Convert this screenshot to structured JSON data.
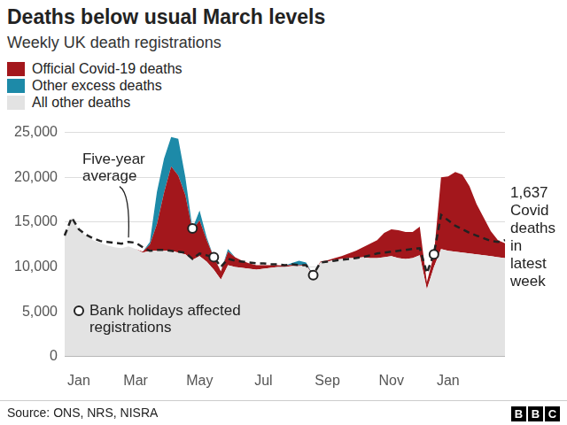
{
  "chart_data": {
    "type": "area",
    "title": "Deaths below usual March levels",
    "subtitle": "Weekly UK death registrations",
    "categories": [
      null,
      null,
      "Jan",
      null,
      null,
      null,
      null,
      null,
      null,
      null,
      "Mar",
      null,
      null,
      null,
      null,
      null,
      null,
      null,
      null,
      "May",
      null,
      null,
      null,
      null,
      null,
      null,
      null,
      null,
      "Jul",
      null,
      null,
      null,
      null,
      null,
      null,
      null,
      null,
      "Sep",
      null,
      null,
      null,
      null,
      null,
      null,
      null,
      null,
      "Nov",
      null,
      null,
      null,
      null,
      null,
      null,
      null,
      "Jan",
      null,
      null,
      null,
      null,
      null,
      null,
      null,
      null
    ],
    "series": [
      {
        "name": "Official Covid-19 deaths",
        "type": "area",
        "color": "#a3171c",
        "values": [
          0,
          0,
          0,
          0,
          0,
          0,
          0,
          0,
          0,
          0,
          0,
          100,
          700,
          3000,
          6500,
          9400,
          8600,
          6600,
          3300,
          4000,
          2400,
          1400,
          900,
          1500,
          1100,
          800,
          600,
          500,
          400,
          300,
          200,
          150,
          150,
          100,
          100,
          100,
          100,
          150,
          200,
          300,
          500,
          800,
          1100,
          1600,
          2000,
          2700,
          3000,
          3100,
          3000,
          2900,
          3200,
          800,
          1400,
          8000,
          8300,
          8900,
          8700,
          7500,
          5600,
          4200,
          2800,
          1900,
          1637
        ]
      },
      {
        "name": "Other excess deaths",
        "type": "area",
        "color": "#1d8aa8",
        "values": [
          0,
          0,
          0,
          0,
          0,
          0,
          0,
          0,
          0,
          0,
          0,
          0,
          300,
          3600,
          3800,
          3300,
          4100,
          2000,
          200,
          1100,
          300,
          0,
          0,
          300,
          0,
          0,
          0,
          0,
          0,
          0,
          0,
          0,
          200,
          500,
          200,
          0,
          0,
          0,
          0,
          0,
          0,
          0,
          0,
          0,
          0,
          0,
          0,
          0,
          0,
          0,
          0,
          0,
          0,
          0,
          0,
          0,
          0,
          0,
          0,
          0,
          0,
          0,
          0
        ]
      },
      {
        "name": "All other deaths",
        "type": "area",
        "color": "#e3e3e3",
        "values": [
          13500,
          15500,
          14200,
          13500,
          13000,
          12700,
          12400,
          12200,
          12100,
          12300,
          12000,
          11600,
          11800,
          11800,
          11800,
          11800,
          11600,
          11400,
          10800,
          11200,
          10600,
          9700,
          8600,
          10200,
          10000,
          9900,
          9800,
          9700,
          9800,
          9900,
          10000,
          10000,
          10100,
          10100,
          10200,
          9000,
          10500,
          10600,
          10800,
          10900,
          11000,
          11000,
          11100,
          11000,
          11000,
          11100,
          11200,
          11000,
          10900,
          11000,
          11300,
          7500,
          10000,
          12000,
          11800,
          11700,
          11600,
          11500,
          11400,
          11300,
          11200,
          11100,
          11000
        ]
      },
      {
        "name": "Five-year average",
        "type": "line",
        "line_style": "dashed",
        "color": "#222222",
        "values": [
          13500,
          15500,
          14200,
          13600,
          13200,
          12900,
          12800,
          12700,
          12600,
          12800,
          12700,
          12200,
          11800,
          11900,
          11900,
          11800,
          11700,
          11600,
          10900,
          11500,
          11300,
          11100,
          10000,
          10900,
          10700,
          10600,
          10500,
          10400,
          10400,
          10300,
          10300,
          10200,
          10300,
          10200,
          10200,
          9100,
          10500,
          10600,
          10700,
          10800,
          10900,
          11000,
          11100,
          11300,
          11500,
          11600,
          11700,
          11800,
          11900,
          12000,
          12100,
          9300,
          11500,
          15800,
          15200,
          14600,
          14200,
          13800,
          13500,
          13200,
          12900,
          12800,
          13000
        ]
      },
      {
        "name": "Bank holidays affected registrations",
        "type": "scatter",
        "marker": "circle",
        "color": "#222222",
        "values": [
          null,
          null,
          null,
          null,
          null,
          null,
          null,
          null,
          null,
          null,
          null,
          null,
          null,
          null,
          null,
          null,
          null,
          null,
          14300,
          null,
          null,
          11100,
          null,
          null,
          null,
          null,
          null,
          null,
          null,
          null,
          null,
          null,
          null,
          null,
          null,
          9100,
          null,
          null,
          null,
          null,
          null,
          null,
          null,
          null,
          null,
          null,
          null,
          null,
          null,
          null,
          null,
          null,
          11400,
          null,
          null,
          null,
          null,
          null,
          null,
          null,
          null,
          null,
          null
        ]
      }
    ],
    "ylim": [
      0,
      25000
    ],
    "yticks": [
      0,
      {
        "value": 5000,
        "label": "5,000"
      },
      {
        "value": 10000,
        "label": "10,000"
      },
      {
        "value": 15000,
        "label": "15,000"
      },
      {
        "value": 20000,
        "label": "20,000"
      },
      {
        "value": 25000,
        "label": "25,000"
      }
    ],
    "grid": true,
    "stacked": true,
    "legend": "top-left",
    "annotations": [
      "1,637 Covid deaths in latest week"
    ],
    "source": "Source: ONS, NRS, NISRA",
    "logo": "BBC"
  }
}
